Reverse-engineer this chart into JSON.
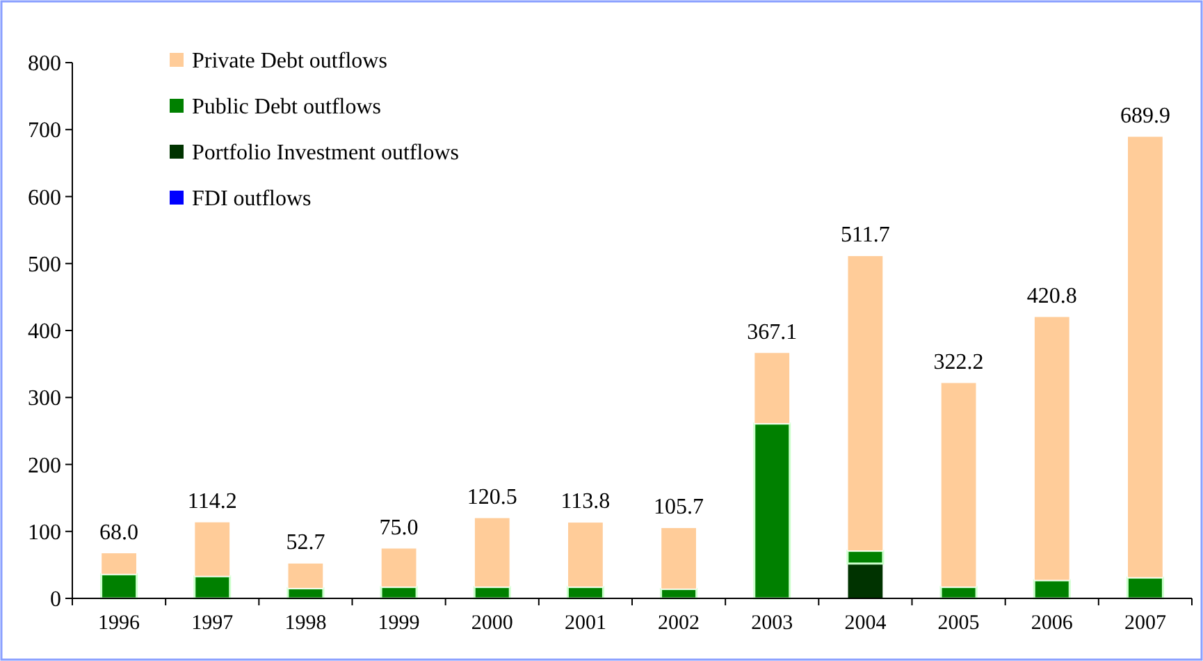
{
  "chart_data": {
    "type": "bar",
    "stacked": true,
    "categories": [
      "1996",
      "1997",
      "1998",
      "1999",
      "2000",
      "2001",
      "2002",
      "2003",
      "2004",
      "2005",
      "2006",
      "2007"
    ],
    "series": [
      {
        "name": "FDI outflows",
        "color": "#0000ff",
        "values": [
          0,
          0,
          0,
          0,
          0,
          0,
          0,
          0,
          0,
          0,
          0,
          0
        ]
      },
      {
        "name": "Portfolio Investment outflows",
        "color": "#003300",
        "values": [
          0,
          0,
          0,
          0,
          0,
          0,
          0,
          0,
          52,
          0,
          0,
          0
        ]
      },
      {
        "name": "Public Debt outflows",
        "color": "#008000",
        "values": [
          36,
          33,
          15,
          17,
          17,
          17,
          14,
          261,
          19,
          17,
          27,
          31
        ]
      },
      {
        "name": "Private Debt outflows",
        "color": "#ffcc99",
        "values": [
          32,
          81.2,
          37.7,
          58,
          103.5,
          96.8,
          91.7,
          106.1,
          440.7,
          305.2,
          393.8,
          658.9
        ]
      }
    ],
    "totals": [
      "68.0",
      "114.2",
      "52.7",
      "75.0",
      "120.5",
      "113.8",
      "105.7",
      "367.1",
      "511.7",
      "322.2",
      "420.8",
      "689.9"
    ],
    "ylim": [
      0,
      800
    ],
    "yticks": [
      0,
      100,
      200,
      300,
      400,
      500,
      600,
      700,
      800
    ],
    "legend": "top left"
  }
}
